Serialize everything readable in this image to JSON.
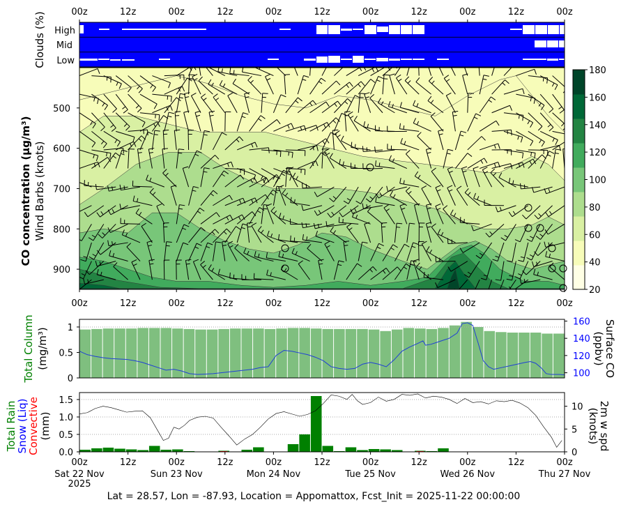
{
  "footer": "Lat = 28.57, Lon = -87.93, Location = Appomattox, Fcst_Init = 2025-11-22 00:00:00",
  "time_ticks": [
    "00z",
    "12z",
    "00z",
    "12z",
    "00z",
    "12z",
    "00z",
    "12z",
    "00z",
    "12z",
    "00z"
  ],
  "date_ticks": [
    "Sat 22 Nov\n2025",
    "Sun 23 Nov",
    "Mon 24 Nov",
    "Tue 25 Nov",
    "Wed 26 Nov",
    "Thu 27 Nov"
  ],
  "colors": {
    "cloud_bg": "#0000ff",
    "bar": "#7fbf7f",
    "surface_line": "#1f3fd6",
    "rain": "#008000",
    "snow": "#0000ff",
    "conv": "#ff0000"
  },
  "chart_data": [
    {
      "type": "table",
      "name": "clouds",
      "ylabel": "Clouds (%)",
      "rows": [
        "High",
        "Mid",
        "Low"
      ],
      "note": "cloud-free gaps shown white on blue background"
    },
    {
      "type": "heatmap",
      "ylabel_bold": "CO concentration (μg/m³)",
      "ylabel2": "Wind Barbs (knots)",
      "yticks": [
        500,
        600,
        700,
        800,
        900
      ],
      "ylim": [
        950,
        400
      ],
      "colorbar": {
        "ticks": [
          20,
          40,
          60,
          80,
          100,
          120,
          140,
          160,
          180
        ],
        "colors": [
          "#ffffe5",
          "#f7fcb9",
          "#d9f0a3",
          "#addd8e",
          "#78c679",
          "#41ab5d",
          "#238443",
          "#006837",
          "#004529"
        ]
      }
    },
    {
      "type": "bar",
      "ylabel": "Total Column\n(mg/m³)",
      "ylabel_right": "Surface CO\n(ppbv)",
      "ylim": [
        0,
        1.15
      ],
      "yticks": [
        0,
        0.5,
        1
      ],
      "y2lim": [
        94,
        162
      ],
      "y2ticks": [
        100,
        120,
        140,
        160
      ],
      "values": [
        0.95,
        0.96,
        0.97,
        0.97,
        0.97,
        0.98,
        0.98,
        0.98,
        0.97,
        0.96,
        0.95,
        0.95,
        0.96,
        0.97,
        0.97,
        0.97,
        0.96,
        0.97,
        0.98,
        0.98,
        0.97,
        0.96,
        0.96,
        0.96,
        0.96,
        0.95,
        0.92,
        0.95,
        0.98,
        0.97,
        0.96,
        0.98,
        1.03,
        1.1,
        1.0,
        0.92,
        0.9,
        0.89,
        0.89,
        0.89,
        0.87,
        0.87
      ],
      "surface_co": [
        [
          0,
          125
        ],
        [
          3,
          121
        ],
        [
          6,
          119
        ],
        [
          9,
          117.5
        ],
        [
          12,
          116.5
        ],
        [
          15,
          116
        ],
        [
          18,
          115.5
        ],
        [
          21,
          114
        ],
        [
          24,
          112
        ],
        [
          27,
          109
        ],
        [
          30,
          106
        ],
        [
          33,
          103
        ],
        [
          36,
          104
        ],
        [
          39,
          102
        ],
        [
          42,
          99
        ],
        [
          45,
          98
        ],
        [
          48,
          98.5
        ],
        [
          51,
          99
        ],
        [
          54,
          100
        ],
        [
          57,
          101
        ],
        [
          60,
          102
        ],
        [
          63,
          103
        ],
        [
          66,
          104
        ],
        [
          69,
          106
        ],
        [
          72,
          107
        ],
        [
          75,
          120
        ],
        [
          78,
          126
        ],
        [
          81,
          125
        ],
        [
          84,
          123
        ],
        [
          87,
          121
        ],
        [
          90,
          118
        ],
        [
          93,
          114
        ],
        [
          96,
          107
        ],
        [
          99,
          105
        ],
        [
          102,
          104
        ],
        [
          105,
          105
        ],
        [
          108,
          110
        ],
        [
          111,
          112
        ],
        [
          114,
          110
        ],
        [
          117,
          107
        ],
        [
          120,
          115
        ],
        [
          123,
          125
        ],
        [
          126,
          130
        ],
        [
          129,
          134
        ],
        [
          131,
          137
        ],
        [
          132,
          132
        ],
        [
          134,
          133
        ],
        [
          136,
          135
        ],
        [
          139,
          138
        ],
        [
          141,
          140
        ],
        [
          144,
          146
        ],
        [
          146,
          157
        ],
        [
          148,
          158
        ],
        [
          150,
          155
        ],
        [
          152,
          135
        ],
        [
          154,
          114
        ],
        [
          156,
          107
        ],
        [
          158,
          104
        ],
        [
          161,
          106
        ],
        [
          164,
          108
        ],
        [
          167,
          110
        ],
        [
          170,
          112
        ],
        [
          172,
          113
        ],
        [
          174,
          111
        ],
        [
          176,
          106
        ],
        [
          178,
          99
        ],
        [
          180,
          98
        ],
        [
          183,
          98
        ],
        [
          185,
          97.5
        ]
      ]
    },
    {
      "type": "bar",
      "ylabel": [
        "Total Rain",
        "Snow (Liq)",
        "Convective",
        "(mm)"
      ],
      "ylabel_right": "2m w spd\n(knots)",
      "ylim": [
        0,
        1.7
      ],
      "yticks": [
        0.0,
        0.5,
        1.0,
        1.5
      ],
      "y2lim": [
        0,
        13
      ],
      "y2ticks": [
        0,
        5,
        10
      ],
      "rain": [
        0.06,
        0.1,
        0.12,
        0.09,
        0.07,
        0.05,
        0.17,
        0.06,
        0.07,
        0.02,
        0,
        0,
        0.03,
        0,
        0.06,
        0.13,
        0,
        0,
        0.22,
        0.5,
        1.6,
        0.17,
        0.02,
        0.13,
        0.05,
        0.08,
        0.07,
        0.05,
        0,
        0.03,
        0.02,
        0.1,
        0,
        0,
        0,
        0,
        0,
        0,
        0.01,
        0,
        0,
        0
      ],
      "convective": [
        0,
        0,
        0,
        0,
        0,
        0,
        0,
        0,
        0,
        0,
        0,
        0,
        0.02,
        0,
        0,
        0,
        0,
        0,
        0,
        0,
        0,
        0,
        0,
        0,
        0,
        0,
        0,
        0,
        0,
        0.02,
        0,
        0,
        0,
        0,
        0,
        0,
        0,
        0,
        0,
        0,
        0,
        0
      ],
      "wind_speed": [
        [
          0,
          8.3
        ],
        [
          3,
          8.6
        ],
        [
          6,
          9.5
        ],
        [
          9,
          10.0
        ],
        [
          12,
          9.7
        ],
        [
          15,
          9.2
        ],
        [
          18,
          8.7
        ],
        [
          21,
          8.9
        ],
        [
          24,
          9.0
        ],
        [
          27,
          7.5
        ],
        [
          30,
          4.5
        ],
        [
          32,
          2.5
        ],
        [
          34,
          3.0
        ],
        [
          36,
          5.4
        ],
        [
          38,
          5.0
        ],
        [
          40,
          5.8
        ],
        [
          42,
          6.9
        ],
        [
          45,
          7.6
        ],
        [
          48,
          7.8
        ],
        [
          51,
          7.4
        ],
        [
          54,
          5.4
        ],
        [
          57,
          3.5
        ],
        [
          60,
          1.5
        ],
        [
          63,
          2.8
        ],
        [
          66,
          3.8
        ],
        [
          69,
          5.4
        ],
        [
          72,
          7.2
        ],
        [
          75,
          8.4
        ],
        [
          78,
          8.8
        ],
        [
          81,
          8.3
        ],
        [
          84,
          7.8
        ],
        [
          87,
          8.2
        ],
        [
          90,
          9.0
        ],
        [
          93,
          10.6
        ],
        [
          96,
          12.5
        ],
        [
          99,
          12.2
        ],
        [
          102,
          11.5
        ],
        [
          104,
          12.6
        ],
        [
          106,
          11.2
        ],
        [
          108,
          10.4
        ],
        [
          111,
          10.8
        ],
        [
          114,
          12.0
        ],
        [
          117,
          11.1
        ],
        [
          120,
          11.5
        ],
        [
          123,
          12.6
        ],
        [
          126,
          12.4
        ],
        [
          129,
          12.7
        ],
        [
          132,
          11.8
        ],
        [
          135,
          12.2
        ],
        [
          138,
          12.0
        ],
        [
          141,
          11.5
        ],
        [
          144,
          10.6
        ],
        [
          147,
          11.7
        ],
        [
          150,
          10.8
        ],
        [
          153,
          11.0
        ],
        [
          156,
          10.5
        ],
        [
          159,
          11.2
        ],
        [
          162,
          11.0
        ],
        [
          165,
          11.3
        ],
        [
          168,
          10.7
        ],
        [
          171,
          9.7
        ],
        [
          174,
          8.0
        ],
        [
          177,
          5.5
        ],
        [
          180,
          3.2
        ],
        [
          182,
          1.0
        ],
        [
          184,
          2.5
        ]
      ]
    }
  ]
}
